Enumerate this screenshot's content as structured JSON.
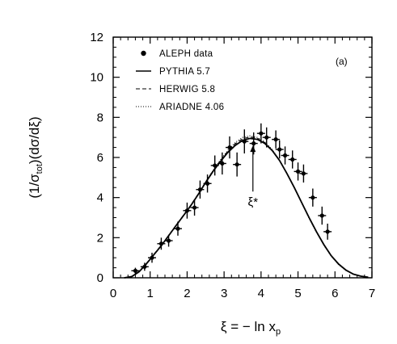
{
  "chart_data": {
    "type": "scatter",
    "title": "",
    "xlabel": "ξ = − ln x",
    "xlabel_sub": "p",
    "ylabel_parts": [
      "(1/σ",
      "tot",
      ")(dσ/dξ)"
    ],
    "panel_label": "(a)",
    "xlim": [
      0,
      7
    ],
    "ylim": [
      0,
      12
    ],
    "xticks": [
      "0",
      "1",
      "2",
      "3",
      "4",
      "5",
      "6",
      "7"
    ],
    "yticks": [
      "0",
      "2",
      "4",
      "6",
      "8",
      "10",
      "12"
    ],
    "annotation": {
      "text": "ξ*",
      "x": 3.78,
      "y_tip": 6.6,
      "y_tail": 4.3
    },
    "legend": [
      {
        "label": "ALEPH data",
        "style": "marker"
      },
      {
        "label": "PYTHIA 5.7",
        "style": "solid"
      },
      {
        "label": "HERWIG 5.8",
        "style": "dashed"
      },
      {
        "label": "ARIADNE 4.06",
        "style": "dotted"
      }
    ],
    "series": [
      {
        "name": "ALEPH data",
        "style": "marker",
        "points": [
          {
            "x": 0.6,
            "y": 0.35,
            "err": 0.15
          },
          {
            "x": 0.85,
            "y": 0.55,
            "err": 0.2
          },
          {
            "x": 1.05,
            "y": 1.0,
            "err": 0.25
          },
          {
            "x": 1.3,
            "y": 1.7,
            "err": 0.3
          },
          {
            "x": 1.5,
            "y": 1.85,
            "err": 0.3
          },
          {
            "x": 1.75,
            "y": 2.45,
            "err": 0.35
          },
          {
            "x": 2.0,
            "y": 3.35,
            "err": 0.4
          },
          {
            "x": 2.2,
            "y": 3.5,
            "err": 0.4
          },
          {
            "x": 2.35,
            "y": 4.4,
            "err": 0.45
          },
          {
            "x": 2.55,
            "y": 4.7,
            "err": 0.45
          },
          {
            "x": 2.75,
            "y": 5.6,
            "err": 0.5
          },
          {
            "x": 2.95,
            "y": 5.7,
            "err": 0.55
          },
          {
            "x": 3.15,
            "y": 6.5,
            "err": 0.55
          },
          {
            "x": 3.35,
            "y": 5.65,
            "err": 0.6
          },
          {
            "x": 3.55,
            "y": 6.8,
            "err": 0.6
          },
          {
            "x": 3.8,
            "y": 6.7,
            "err": 0.55
          },
          {
            "x": 4.0,
            "y": 7.2,
            "err": 0.5
          },
          {
            "x": 4.15,
            "y": 7.0,
            "err": 0.5
          },
          {
            "x": 4.4,
            "y": 6.9,
            "err": 0.45
          },
          {
            "x": 4.5,
            "y": 6.4,
            "err": 0.45
          },
          {
            "x": 4.65,
            "y": 6.1,
            "err": 0.45
          },
          {
            "x": 4.85,
            "y": 5.9,
            "err": 0.45
          },
          {
            "x": 5.0,
            "y": 5.3,
            "err": 0.45
          },
          {
            "x": 5.15,
            "y": 5.2,
            "err": 0.45
          },
          {
            "x": 5.4,
            "y": 4.0,
            "err": 0.45
          },
          {
            "x": 5.65,
            "y": 3.1,
            "err": 0.45
          },
          {
            "x": 5.8,
            "y": 2.3,
            "err": 0.4
          }
        ]
      },
      {
        "name": "PYTHIA 5.7",
        "style": "solid",
        "x": [
          0.3,
          0.5,
          0.7,
          0.9,
          1.1,
          1.3,
          1.5,
          1.7,
          1.9,
          2.1,
          2.3,
          2.5,
          2.7,
          2.9,
          3.1,
          3.3,
          3.5,
          3.7,
          3.9,
          4.1,
          4.3,
          4.5,
          4.7,
          4.9,
          5.1,
          5.3,
          5.5,
          5.7,
          5.9,
          6.1,
          6.3,
          6.5,
          6.7,
          6.9
        ],
        "y": [
          0.0,
          0.06,
          0.3,
          0.7,
          1.15,
          1.6,
          2.1,
          2.6,
          3.1,
          3.6,
          4.15,
          4.75,
          5.3,
          5.8,
          6.25,
          6.6,
          6.85,
          6.95,
          6.9,
          6.7,
          6.35,
          5.85,
          5.2,
          4.5,
          3.75,
          3.0,
          2.3,
          1.65,
          1.1,
          0.68,
          0.38,
          0.18,
          0.08,
          0.03
        ]
      },
      {
        "name": "HERWIG 5.8",
        "style": "dashed",
        "x": [
          0.3,
          0.5,
          0.7,
          0.9,
          1.1,
          1.3,
          1.5,
          1.7,
          1.9,
          2.1,
          2.3,
          2.5,
          2.7,
          2.9,
          3.1,
          3.3,
          3.5,
          3.7,
          3.9,
          4.1,
          4.3,
          4.5,
          4.7,
          4.9,
          5.1,
          5.3,
          5.5,
          5.7,
          5.9,
          6.1,
          6.3,
          6.5,
          6.7,
          6.9
        ],
        "y": [
          0.0,
          0.07,
          0.32,
          0.72,
          1.17,
          1.62,
          2.12,
          2.62,
          3.12,
          3.63,
          4.18,
          4.78,
          5.33,
          5.85,
          6.3,
          6.68,
          6.93,
          7.02,
          6.95,
          6.74,
          6.37,
          5.86,
          5.2,
          4.5,
          3.74,
          2.98,
          2.28,
          1.63,
          1.08,
          0.66,
          0.37,
          0.18,
          0.08,
          0.03
        ]
      },
      {
        "name": "ARIADNE 4.06",
        "style": "dotted",
        "x": [
          0.3,
          0.5,
          0.7,
          0.9,
          1.1,
          1.3,
          1.5,
          1.7,
          1.9,
          2.1,
          2.3,
          2.5,
          2.7,
          2.9,
          3.1,
          3.3,
          3.5,
          3.7,
          3.9,
          4.1,
          4.3,
          4.5,
          4.7,
          4.9,
          5.1,
          5.3,
          5.5,
          5.7,
          5.9,
          6.1,
          6.3,
          6.5,
          6.7,
          6.9
        ],
        "y": [
          0.0,
          0.05,
          0.28,
          0.68,
          1.13,
          1.58,
          2.08,
          2.58,
          3.08,
          3.6,
          4.16,
          4.78,
          5.35,
          5.88,
          6.35,
          6.75,
          7.0,
          7.08,
          7.0,
          6.78,
          6.4,
          5.88,
          5.22,
          4.5,
          3.72,
          2.96,
          2.26,
          1.62,
          1.07,
          0.65,
          0.36,
          0.17,
          0.07,
          0.02
        ]
      }
    ]
  }
}
